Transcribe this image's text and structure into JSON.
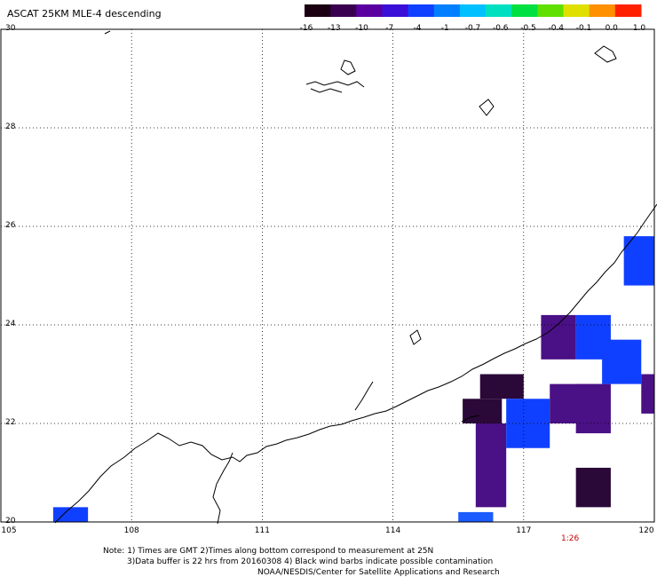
{
  "title": "ASCAT 25KM MLE-4 descending",
  "colorbar": {
    "labels": [
      "-16",
      "-13",
      "-10",
      "-7",
      "-4",
      "-1",
      "-0.7",
      "-0.6",
      "-0.5",
      "-0.4",
      "-0.1",
      "0.0",
      "1.0"
    ],
    "colors": [
      "#1a0010",
      "#3a0050",
      "#5a00a0",
      "#3a10d8",
      "#1040ff",
      "#0080ff",
      "#00c0ff",
      "#00e0c0",
      "#00e040",
      "#60e000",
      "#e0e000",
      "#ff9000",
      "#ff2000"
    ]
  },
  "axes": {
    "x_ticks": [
      "105",
      "108",
      "111",
      "114",
      "117",
      "120"
    ],
    "y_ticks": [
      "30",
      "28",
      "26",
      "24",
      "22",
      "20"
    ],
    "lon_range": [
      105,
      120
    ],
    "lat_range": [
      20,
      30
    ]
  },
  "pass_time": "1:26",
  "notes": {
    "line1": "Note: 1) Times are GMT 2)Times along bottom correspond to measurement at 25N",
    "line2": "3)Data buffer is 22 hrs from 20160308 4) Black wind barbs indicate possible contamination",
    "line3": "NOAA/NESDIS/Center for Satellite Applications and Research"
  },
  "data_cells": [
    {
      "lon": [
        106.2,
        107.0
      ],
      "lat": [
        20.0,
        20.3
      ],
      "color": "#1040ff"
    },
    {
      "lon": [
        115.5,
        116.3
      ],
      "lat": [
        20.0,
        20.2
      ],
      "color": "#1a5cff"
    },
    {
      "lon": [
        116.0,
        117.0
      ],
      "lat": [
        22.5,
        23.0
      ],
      "color": "#2a0838"
    },
    {
      "lon": [
        115.6,
        116.5
      ],
      "lat": [
        22.0,
        22.5
      ],
      "color": "#2a0838"
    },
    {
      "lon": [
        115.9,
        116.6
      ],
      "lat": [
        20.3,
        22.0
      ],
      "color": "#4a1085"
    },
    {
      "lon": [
        116.6,
        117.6
      ],
      "lat": [
        21.5,
        22.5
      ],
      "color": "#1040ff"
    },
    {
      "lon": [
        117.6,
        118.8
      ],
      "lat": [
        22.0,
        22.8
      ],
      "color": "#4a1085"
    },
    {
      "lon": [
        117.4,
        118.2
      ],
      "lat": [
        23.3,
        24.2
      ],
      "color": "#4a1085"
    },
    {
      "lon": [
        118.2,
        119.0
      ],
      "lat": [
        23.3,
        24.2
      ],
      "color": "#1040ff"
    },
    {
      "lon": [
        118.8,
        119.7
      ],
      "lat": [
        22.8,
        23.7
      ],
      "color": "#1040ff"
    },
    {
      "lon": [
        118.2,
        119.0
      ],
      "lat": [
        21.8,
        22.8
      ],
      "color": "#4a1085"
    },
    {
      "lon": [
        118.2,
        119.0
      ],
      "lat": [
        20.3,
        21.1
      ],
      "color": "#2a0838"
    },
    {
      "lon": [
        119.7,
        120.0
      ],
      "lat": [
        22.2,
        23.0
      ],
      "color": "#4a1085"
    },
    {
      "lon": [
        119.3,
        120.0
      ],
      "lat": [
        24.8,
        25.8
      ],
      "color": "#1040ff"
    }
  ]
}
